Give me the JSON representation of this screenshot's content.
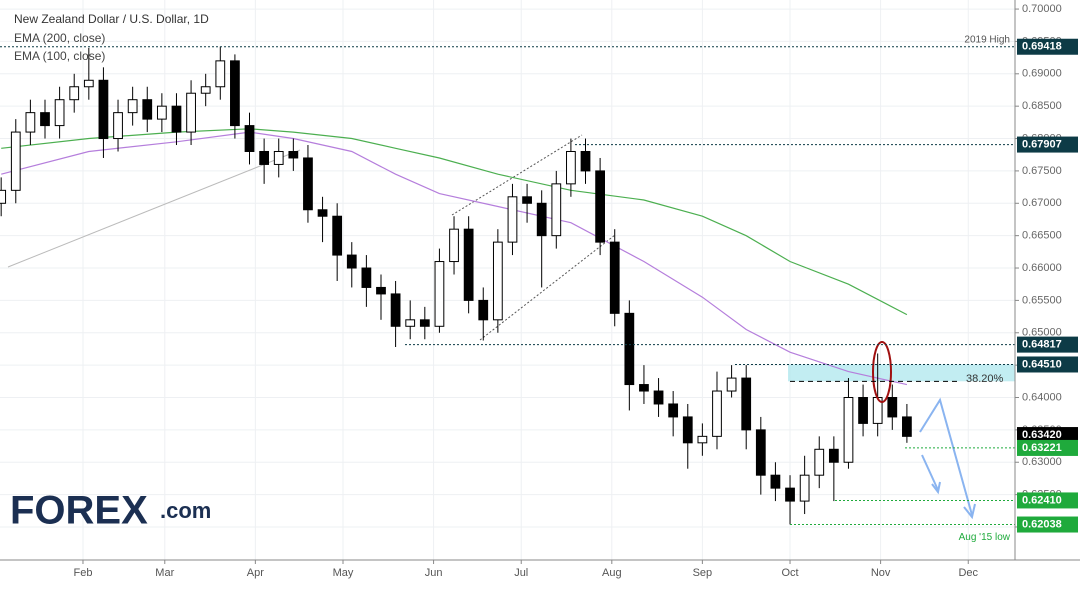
{
  "chart_data": {
    "type": "candlestick",
    "title": "New Zealand Dollar / U.S. Dollar, 1D",
    "xlim": [
      3.6,
      351
    ],
    "xticks": [
      {
        "value": 32,
        "label": "Feb"
      },
      {
        "value": 60,
        "label": "Mar"
      },
      {
        "value": 91,
        "label": "Apr"
      },
      {
        "value": 121,
        "label": "May"
      },
      {
        "value": 152,
        "label": "Jun"
      },
      {
        "value": 182,
        "label": "Jul"
      },
      {
        "value": 213,
        "label": "Aug"
      },
      {
        "value": 244,
        "label": "Sep"
      },
      {
        "value": 274,
        "label": "Oct"
      },
      {
        "value": 305,
        "label": "Nov"
      },
      {
        "value": 335,
        "label": "Dec"
      }
    ],
    "ylim": [
      0.6149,
      0.7014
    ],
    "yticks": [
      {
        "value": 0.62,
        "label": "0.62000"
      },
      {
        "value": 0.625,
        "label": "0.62500"
      },
      {
        "value": 0.63,
        "label": "0.63000"
      },
      {
        "value": 0.635,
        "label": "0.63500"
      },
      {
        "value": 0.64,
        "label": "0.64000"
      },
      {
        "value": 0.645,
        "label": "0.64500"
      },
      {
        "value": 0.65,
        "label": "0.65000"
      },
      {
        "value": 0.655,
        "label": "0.65500"
      },
      {
        "value": 0.66,
        "label": "0.66000"
      },
      {
        "value": 0.665,
        "label": "0.66500"
      },
      {
        "value": 0.67,
        "label": "0.67000"
      },
      {
        "value": 0.675,
        "label": "0.67500"
      },
      {
        "value": 0.68,
        "label": "0.68000"
      },
      {
        "value": 0.685,
        "label": "0.68500"
      },
      {
        "value": 0.69,
        "label": "0.69000"
      },
      {
        "value": 0.695,
        "label": "0.69500"
      },
      {
        "value": 0.7,
        "label": "0.70000"
      }
    ],
    "up_color": "#ffffff",
    "down_color": "#000000",
    "x": [
      4,
      9,
      14,
      19,
      24,
      29,
      34,
      39,
      44,
      49,
      54,
      59,
      64,
      69,
      74,
      79,
      84,
      89,
      94,
      99,
      104,
      109,
      114,
      119,
      124,
      129,
      134,
      139,
      144,
      149,
      154,
      159,
      164,
      169,
      174,
      179,
      184,
      189,
      194,
      199,
      204,
      209,
      214,
      219,
      224,
      229,
      234,
      239,
      244,
      249,
      254,
      259,
      264,
      269,
      274,
      279,
      284,
      289,
      294,
      299,
      304,
      309,
      314
    ],
    "open": [
      0.67,
      0.672,
      0.681,
      0.684,
      0.682,
      0.686,
      0.688,
      0.689,
      0.68,
      0.684,
      0.686,
      0.683,
      0.685,
      0.681,
      0.687,
      0.688,
      0.692,
      0.682,
      0.678,
      0.676,
      0.678,
      0.677,
      0.669,
      0.668,
      0.662,
      0.66,
      0.657,
      0.656,
      0.651,
      0.652,
      0.651,
      0.661,
      0.666,
      0.655,
      0.652,
      0.664,
      0.671,
      0.67,
      0.665,
      0.673,
      0.678,
      0.675,
      0.664,
      0.653,
      0.642,
      0.641,
      0.639,
      0.637,
      0.633,
      0.634,
      0.641,
      0.643,
      0.635,
      0.628,
      0.626,
      0.624,
      0.628,
      0.632,
      0.63,
      0.64,
      0.636,
      0.64,
      0.637
    ],
    "high": [
      0.674,
      0.683,
      0.686,
      0.686,
      0.688,
      0.69,
      0.694,
      0.691,
      0.686,
      0.688,
      0.688,
      0.687,
      0.687,
      0.689,
      0.69,
      0.6942,
      0.693,
      0.684,
      0.68,
      0.68,
      0.68,
      0.679,
      0.671,
      0.67,
      0.664,
      0.662,
      0.659,
      0.658,
      0.655,
      0.654,
      0.663,
      0.668,
      0.668,
      0.657,
      0.666,
      0.673,
      0.673,
      0.672,
      0.675,
      0.68,
      0.68,
      0.677,
      0.666,
      0.655,
      0.645,
      0.643,
      0.641,
      0.639,
      0.636,
      0.644,
      0.645,
      0.645,
      0.637,
      0.63,
      0.628,
      0.631,
      0.634,
      0.634,
      0.643,
      0.642,
      0.6468,
      0.642,
      0.639
    ],
    "low": [
      0.668,
      0.67,
      0.679,
      0.68,
      0.68,
      0.684,
      0.686,
      0.677,
      0.678,
      0.682,
      0.681,
      0.681,
      0.679,
      0.679,
      0.685,
      0.686,
      0.68,
      0.676,
      0.673,
      0.674,
      0.675,
      0.667,
      0.664,
      0.658,
      0.657,
      0.654,
      0.652,
      0.6478,
      0.649,
      0.649,
      0.65,
      0.659,
      0.653,
      0.6488,
      0.65,
      0.662,
      0.667,
      0.657,
      0.663,
      0.671,
      0.673,
      0.662,
      0.651,
      0.638,
      0.639,
      0.637,
      0.634,
      0.629,
      0.631,
      0.632,
      0.64,
      0.632,
      0.625,
      0.624,
      0.6204,
      0.622,
      0.626,
      0.624,
      0.629,
      0.634,
      0.634,
      0.635,
      0.633
    ],
    "close": [
      0.672,
      0.681,
      0.684,
      0.682,
      0.686,
      0.688,
      0.689,
      0.68,
      0.684,
      0.686,
      0.683,
      0.685,
      0.681,
      0.687,
      0.688,
      0.692,
      0.682,
      0.678,
      0.676,
      0.678,
      0.677,
      0.669,
      0.668,
      0.662,
      0.66,
      0.657,
      0.656,
      0.651,
      0.652,
      0.651,
      0.661,
      0.666,
      0.655,
      0.652,
      0.664,
      0.671,
      0.67,
      0.665,
      0.673,
      0.678,
      0.675,
      0.664,
      0.653,
      0.642,
      0.641,
      0.639,
      0.637,
      0.633,
      0.634,
      0.641,
      0.643,
      0.635,
      0.628,
      0.626,
      0.624,
      0.628,
      0.632,
      0.63,
      0.64,
      0.636,
      0.64,
      0.637,
      0.634
    ],
    "lines": [
      {
        "name": "EMA (200, close)",
        "color": "#4caf50",
        "x": [
          4,
          34,
          64,
          89,
          104,
          124,
          139,
          154,
          174,
          199,
          224,
          244,
          259,
          274,
          294,
          314
        ],
        "values": [
          0.6785,
          0.68,
          0.681,
          0.6815,
          0.681,
          0.68,
          0.6785,
          0.677,
          0.6745,
          0.672,
          0.6705,
          0.668,
          0.665,
          0.661,
          0.6575,
          0.6528
        ]
      },
      {
        "name": "EMA (100, close)",
        "color": "#b57edc",
        "x": [
          4,
          34,
          64,
          89,
          104,
          124,
          139,
          154,
          174,
          199,
          224,
          244,
          259,
          274,
          294,
          314
        ],
        "values": [
          0.6745,
          0.678,
          0.6795,
          0.681,
          0.68,
          0.678,
          0.6745,
          0.6715,
          0.6695,
          0.667,
          0.661,
          0.6555,
          0.6505,
          0.647,
          0.644,
          0.642
        ]
      }
    ],
    "levels": [
      {
        "price": 0.69418,
        "note": "2019 High",
        "color": "#0d3b46"
      },
      {
        "price": 0.67907,
        "color": "#0d3b46"
      },
      {
        "price": 0.64817,
        "color": "#0d3b46"
      },
      {
        "price": {
          "value": 0.6451,
          "label": "0.64510"
        },
        "color": "#0d3b46"
      },
      {
        "price": {
          "value": 0.6342,
          "label": "0.63420"
        },
        "color": "#000000"
      },
      {
        "price": 0.63221,
        "color": "#1faa3c"
      },
      {
        "price": {
          "value": 0.6241,
          "label": "0.62410"
        },
        "color": "#1faa3c"
      },
      {
        "price": 0.62038,
        "note": "Aug '15 low",
        "color": "#1faa3c"
      }
    ],
    "fib_level": {
      "ratio": 38.2,
      "label": "38.20%",
      "price": 0.6425
    },
    "zone": [
      0.6425,
      0.6451
    ],
    "logo": {
      "brand": "FOREX",
      "suffix": ".com"
    }
  }
}
